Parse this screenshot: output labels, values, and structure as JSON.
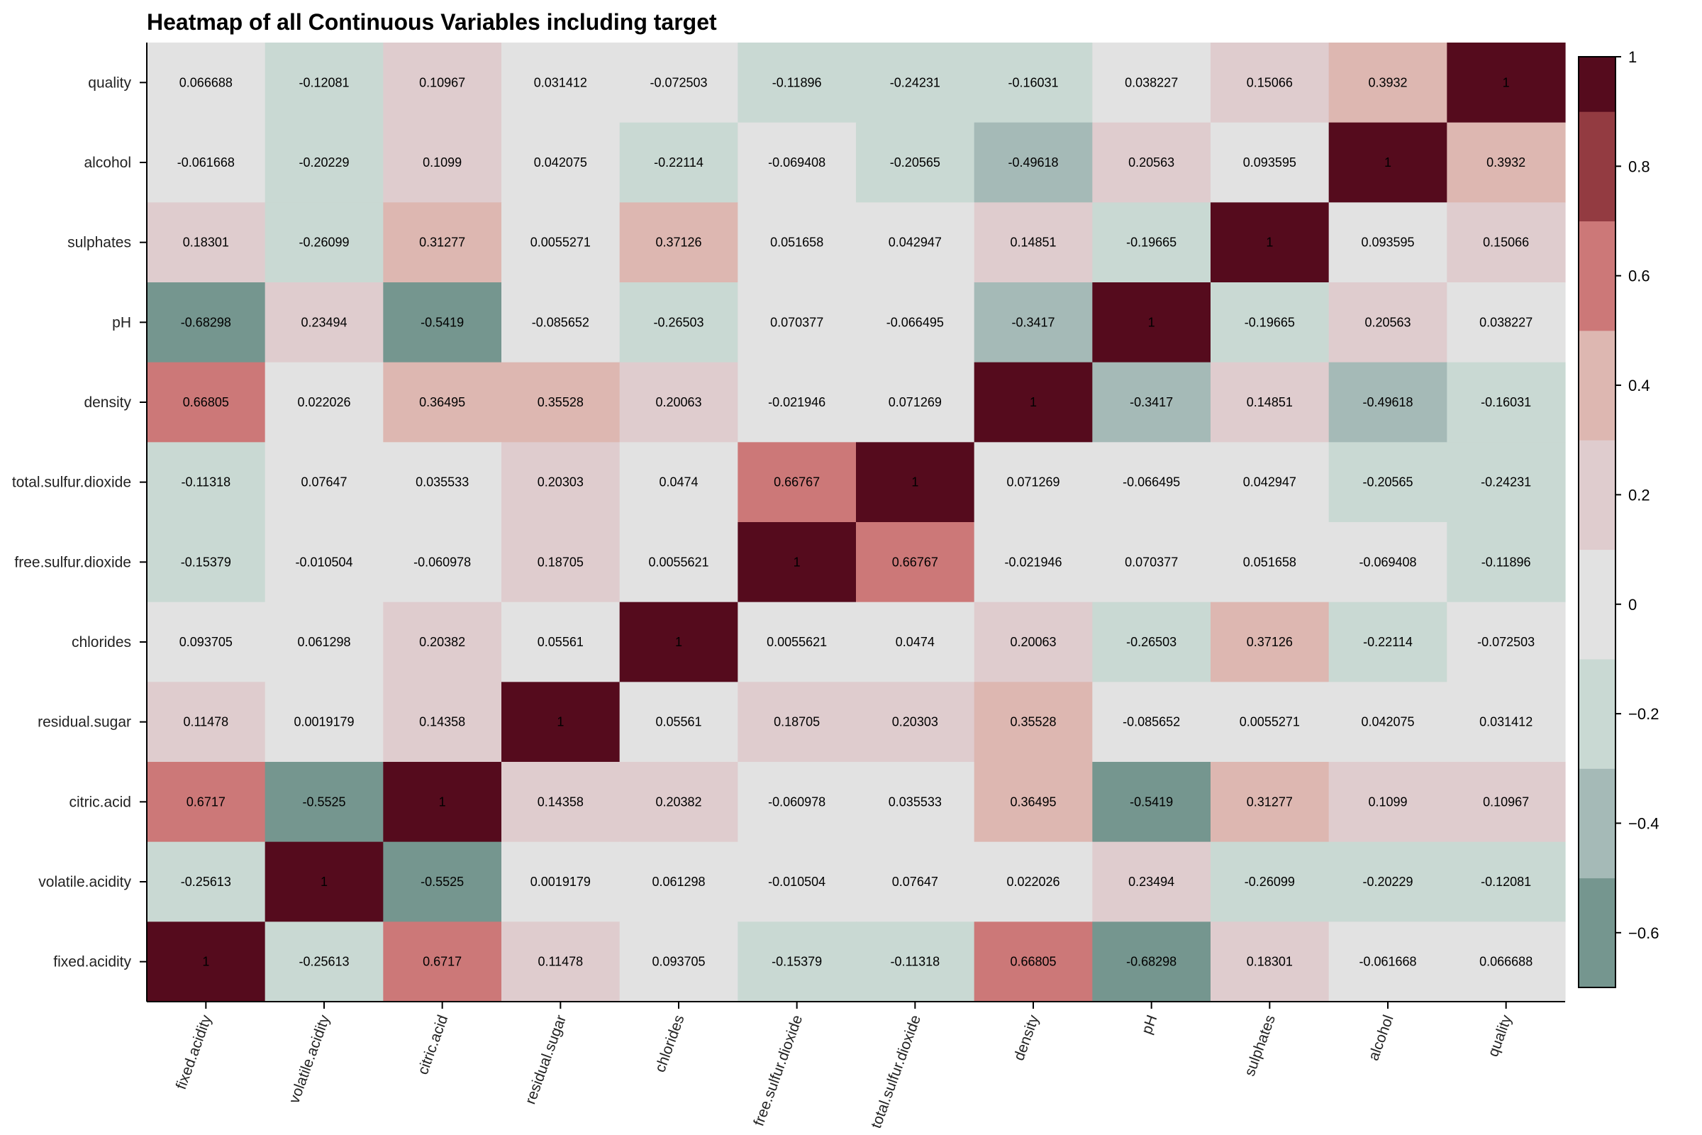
{
  "chart_data": {
    "type": "heatmap",
    "title": "Heatmap of all Continuous Variables including target",
    "x_labels": [
      "fixed.acidity",
      "volatile.acidity",
      "citric.acid",
      "residual.sugar",
      "chlorides",
      "free.sulfur.dioxide",
      "total.sulfur.dioxide",
      "density",
      "pH",
      "sulphates",
      "alcohol",
      "quality"
    ],
    "y_labels_top_to_bottom": [
      "quality",
      "alcohol",
      "sulphates",
      "pH",
      "density",
      "total.sulfur.dioxide",
      "free.sulfur.dioxide",
      "chlorides",
      "residual.sugar",
      "citric.acid",
      "volatile.acidity",
      "fixed.acidity"
    ],
    "values": [
      [
        "0.066688",
        "-0.12081",
        "0.10967",
        "0.031412",
        "-0.072503",
        "-0.11896",
        "-0.24231",
        "-0.16031",
        "0.038227",
        "0.15066",
        "0.3932",
        "1"
      ],
      [
        "-0.061668",
        "-0.20229",
        "0.1099",
        "0.042075",
        "-0.22114",
        "-0.069408",
        "-0.20565",
        "-0.49618",
        "0.20563",
        "0.093595",
        "1",
        "0.3932"
      ],
      [
        "0.18301",
        "-0.26099",
        "0.31277",
        "0.0055271",
        "0.37126",
        "0.051658",
        "0.042947",
        "0.14851",
        "-0.19665",
        "1",
        "0.093595",
        "0.15066"
      ],
      [
        "-0.68298",
        "0.23494",
        "-0.5419",
        "-0.085652",
        "-0.26503",
        "0.070377",
        "-0.066495",
        "-0.3417",
        "1",
        "-0.19665",
        "0.20563",
        "0.038227"
      ],
      [
        "0.66805",
        "0.022026",
        "0.36495",
        "0.35528",
        "0.20063",
        "-0.021946",
        "0.071269",
        "1",
        "-0.3417",
        "0.14851",
        "-0.49618",
        "-0.16031"
      ],
      [
        "-0.11318",
        "0.07647",
        "0.035533",
        "0.20303",
        "0.0474",
        "0.66767",
        "1",
        "0.071269",
        "-0.066495",
        "0.042947",
        "-0.20565",
        "-0.24231"
      ],
      [
        "-0.15379",
        "-0.010504",
        "-0.060978",
        "0.18705",
        "0.0055621",
        "1",
        "0.66767",
        "-0.021946",
        "0.070377",
        "0.051658",
        "-0.069408",
        "-0.11896"
      ],
      [
        "0.093705",
        "0.061298",
        "0.20382",
        "0.05561",
        "1",
        "0.0055621",
        "0.0474",
        "0.20063",
        "-0.26503",
        "0.37126",
        "-0.22114",
        "-0.072503"
      ],
      [
        "0.11478",
        "0.0019179",
        "0.14358",
        "1",
        "0.05561",
        "0.18705",
        "0.20303",
        "0.35528",
        "-0.085652",
        "0.0055271",
        "0.042075",
        "0.031412"
      ],
      [
        "0.6717",
        "-0.5525",
        "1",
        "0.14358",
        "0.20382",
        "-0.060978",
        "0.035533",
        "0.36495",
        "-0.5419",
        "0.31277",
        "0.1099",
        "0.10967"
      ],
      [
        "-0.25613",
        "1",
        "-0.5525",
        "0.0019179",
        "0.061298",
        "-0.010504",
        "0.07647",
        "0.022026",
        "0.23494",
        "-0.26099",
        "-0.20229",
        "-0.12081"
      ],
      [
        "1",
        "-0.25613",
        "0.6717",
        "0.11478",
        "0.093705",
        "-0.15379",
        "-0.11318",
        "0.66805",
        "-0.68298",
        "0.18301",
        "-0.061668",
        "0.066688"
      ]
    ],
    "colorbar": {
      "range": [
        -0.7,
        1.0
      ],
      "bins": [
        {
          "from": -0.7,
          "to": -0.5,
          "color": "#75968f"
        },
        {
          "from": -0.5,
          "to": -0.3,
          "color": "#a5bab7"
        },
        {
          "from": -0.3,
          "to": -0.1,
          "color": "#c9d9d3"
        },
        {
          "from": -0.1,
          "to": 0.1,
          "color": "#e2e2e2"
        },
        {
          "from": 0.1,
          "to": 0.3,
          "color": "#dfccce"
        },
        {
          "from": 0.3,
          "to": 0.5,
          "color": "#ddb7b1"
        },
        {
          "from": 0.5,
          "to": 0.7,
          "color": "#cc7878"
        },
        {
          "from": 0.7,
          "to": 0.9,
          "color": "#933b41"
        },
        {
          "from": 0.9,
          "to": 1.0,
          "color": "#550b1d"
        }
      ],
      "ticks": [
        {
          "value": 1,
          "label": "1"
        },
        {
          "value": 0.8,
          "label": "0.8"
        },
        {
          "value": 0.6,
          "label": "0.6"
        },
        {
          "value": 0.4,
          "label": "0.4"
        },
        {
          "value": 0.2,
          "label": "0.2"
        },
        {
          "value": 0,
          "label": "0"
        },
        {
          "value": -0.2,
          "label": "−0.2"
        },
        {
          "value": -0.4,
          "label": "−0.4"
        },
        {
          "value": -0.6,
          "label": "−0.6"
        }
      ]
    }
  }
}
